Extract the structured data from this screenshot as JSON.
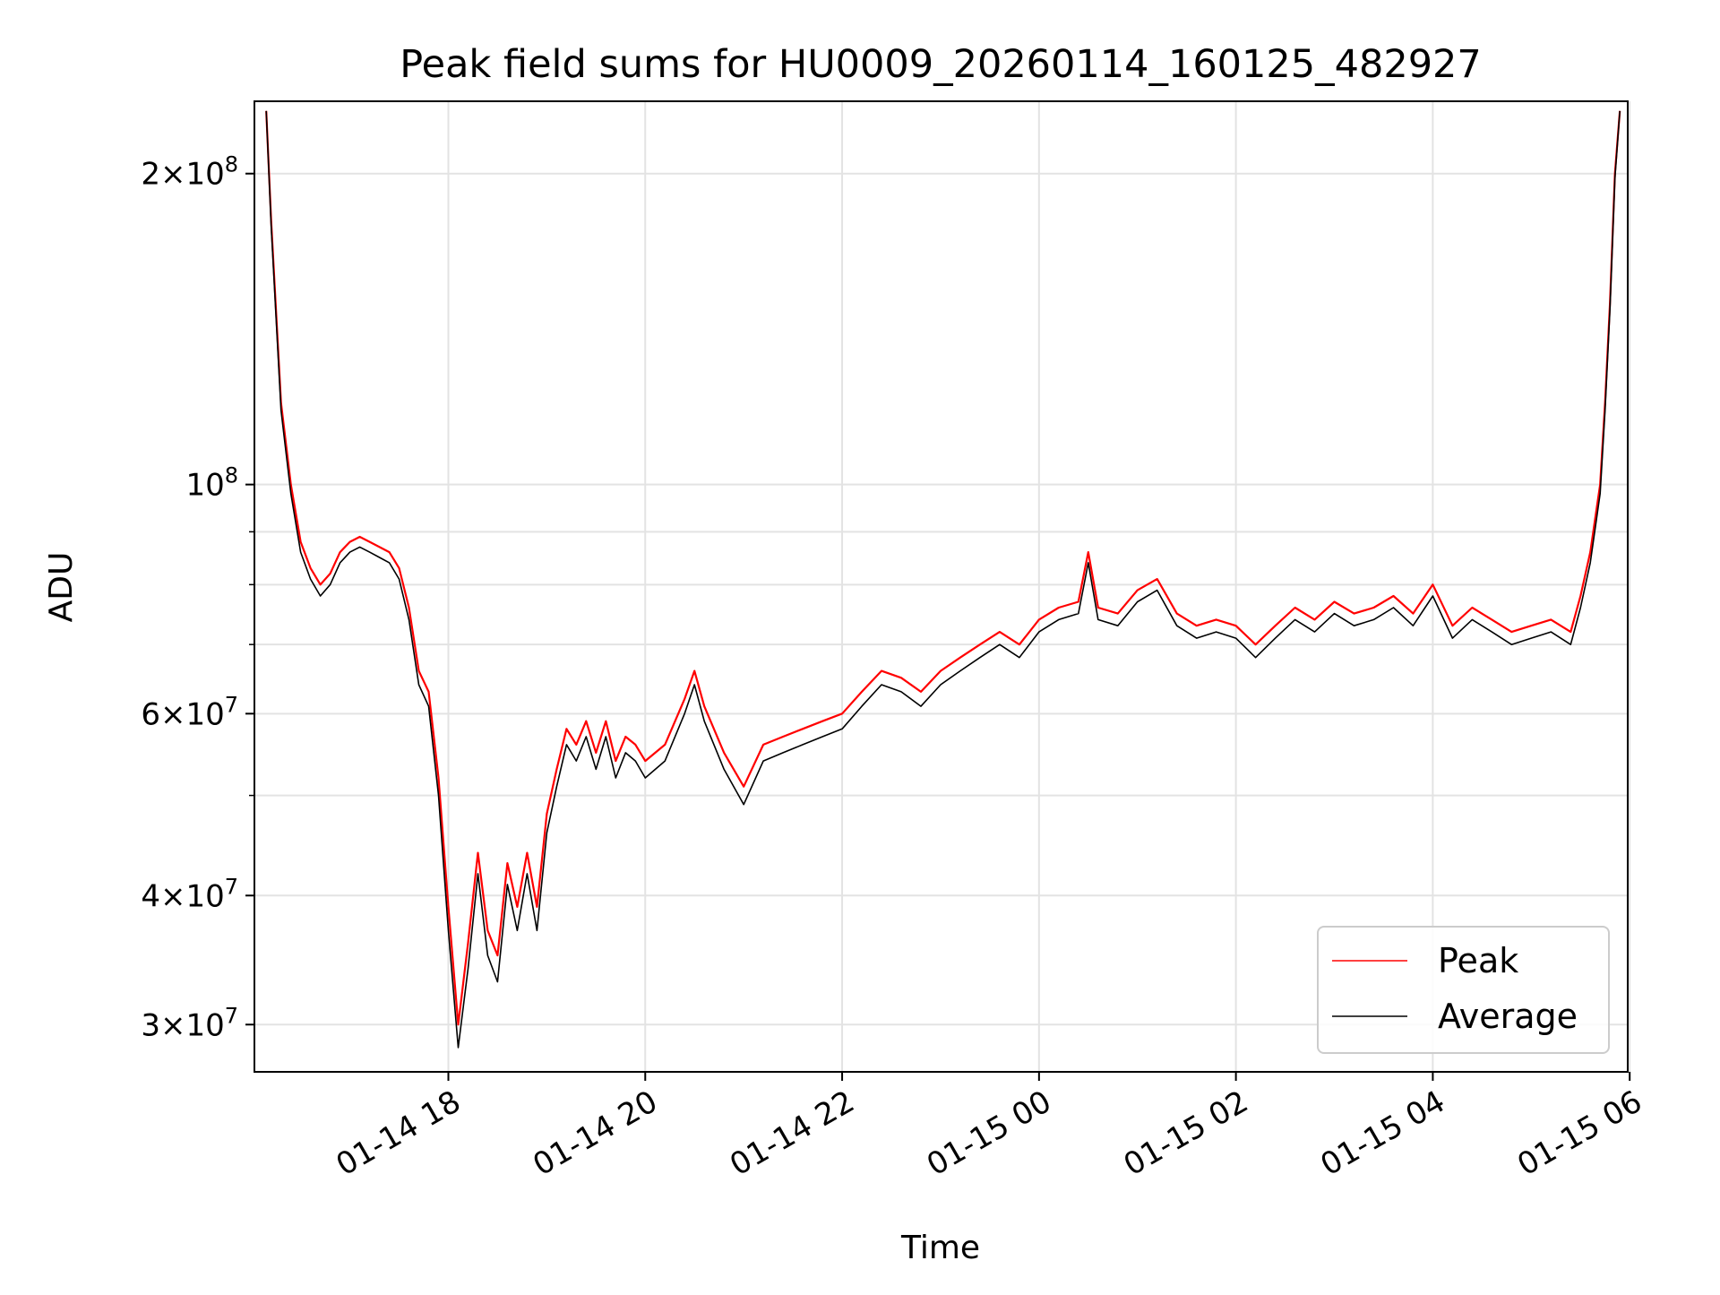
{
  "chart_data": {
    "type": "line",
    "title": "Peak field sums for HU0009_20260114_160125_482927",
    "xlabel": "Time",
    "ylabel": "ADU",
    "yscale": "log",
    "grid": true,
    "legend_position": "bottom-right",
    "x_unit": "hours since 01-14 00:00",
    "xlim": [
      16.03,
      29.98
    ],
    "ylim": [
      27000000.0,
      235000000.0
    ],
    "x_ticks": [
      {
        "value": 18,
        "label": "01-14 18"
      },
      {
        "value": 20,
        "label": "01-14 20"
      },
      {
        "value": 22,
        "label": "01-14 22"
      },
      {
        "value": 24,
        "label": "01-15 00"
      },
      {
        "value": 26,
        "label": "01-15 02"
      },
      {
        "value": 28,
        "label": "01-15 04"
      },
      {
        "value": 30,
        "label": "01-15 06"
      }
    ],
    "y_major_ticks": [
      {
        "value": 30000000,
        "mantissa": "3",
        "exponent": "7"
      },
      {
        "value": 40000000,
        "mantissa": "4",
        "exponent": "7"
      },
      {
        "value": 60000000,
        "mantissa": "6",
        "exponent": "7"
      },
      {
        "value": 100000000,
        "mantissa": "",
        "exponent": "8"
      },
      {
        "value": 200000000,
        "mantissa": "2",
        "exponent": "8"
      }
    ],
    "y_minor_ticks": [
      50000000,
      70000000,
      80000000,
      90000000
    ],
    "series": [
      {
        "name": "Peak",
        "color": "#ff0000",
        "x": [
          16.15,
          16.2,
          16.3,
          16.4,
          16.5,
          16.6,
          16.7,
          16.8,
          16.9,
          17.0,
          17.1,
          17.2,
          17.3,
          17.4,
          17.5,
          17.6,
          17.7,
          17.8,
          17.9,
          18.0,
          18.1,
          18.2,
          18.3,
          18.4,
          18.5,
          18.6,
          18.7,
          18.8,
          18.9,
          19.0,
          19.1,
          19.2,
          19.3,
          19.4,
          19.5,
          19.6,
          19.7,
          19.8,
          19.9,
          20.0,
          20.2,
          20.4,
          20.5,
          20.6,
          20.8,
          21.0,
          21.2,
          21.4,
          21.6,
          21.8,
          22.0,
          22.2,
          22.4,
          22.6,
          22.8,
          23.0,
          23.2,
          23.4,
          23.6,
          23.8,
          24.0,
          24.2,
          24.4,
          24.5,
          24.6,
          24.8,
          25.0,
          25.2,
          25.4,
          25.6,
          25.8,
          26.0,
          26.2,
          26.4,
          26.6,
          26.8,
          27.0,
          27.2,
          27.4,
          27.6,
          27.8,
          28.0,
          28.2,
          28.4,
          28.6,
          28.8,
          29.0,
          29.2,
          29.4,
          29.5,
          29.6,
          29.7,
          29.75,
          29.8,
          29.85,
          29.9
        ],
        "values": [
          230000000.0,
          180000000.0,
          120000000.0,
          100000000.0,
          88000000.0,
          83000000.0,
          80000000.0,
          82000000.0,
          86000000.0,
          88000000.0,
          89000000.0,
          88000000.0,
          87000000.0,
          86000000.0,
          83000000.0,
          76000000.0,
          66000000.0,
          63000000.0,
          52000000.0,
          39000000.0,
          30000000.0,
          36000000.0,
          44000000.0,
          37000000.0,
          35000000.0,
          43000000.0,
          39000000.0,
          44000000.0,
          39000000.0,
          48000000.0,
          53000000.0,
          58000000.0,
          56000000.0,
          59000000.0,
          55000000.0,
          59000000.0,
          54000000.0,
          57000000.0,
          56000000.0,
          54000000.0,
          56000000.0,
          62000000.0,
          66000000.0,
          61000000.0,
          55000000.0,
          51000000.0,
          56000000.0,
          57000000.0,
          58000000.0,
          59000000.0,
          60000000.0,
          63000000.0,
          66000000.0,
          65000000.0,
          63000000.0,
          66000000.0,
          68000000.0,
          70000000.0,
          72000000.0,
          70000000.0,
          74000000.0,
          76000000.0,
          77000000.0,
          86000000.0,
          76000000.0,
          75000000.0,
          79000000.0,
          81000000.0,
          75000000.0,
          73000000.0,
          74000000.0,
          73000000.0,
          70000000.0,
          73000000.0,
          76000000.0,
          74000000.0,
          77000000.0,
          75000000.0,
          76000000.0,
          78000000.0,
          75000000.0,
          80000000.0,
          73000000.0,
          76000000.0,
          74000000.0,
          72000000.0,
          73000000.0,
          74000000.0,
          72000000.0,
          78000000.0,
          86000000.0,
          100000000.0,
          120000000.0,
          150000000.0,
          200000000.0,
          230000000.0
        ]
      },
      {
        "name": "Average",
        "color": "#000000",
        "x": [
          16.15,
          16.2,
          16.3,
          16.4,
          16.5,
          16.6,
          16.7,
          16.8,
          16.9,
          17.0,
          17.1,
          17.2,
          17.3,
          17.4,
          17.5,
          17.6,
          17.7,
          17.8,
          17.9,
          18.0,
          18.1,
          18.2,
          18.3,
          18.4,
          18.5,
          18.6,
          18.7,
          18.8,
          18.9,
          19.0,
          19.1,
          19.2,
          19.3,
          19.4,
          19.5,
          19.6,
          19.7,
          19.8,
          19.9,
          20.0,
          20.2,
          20.4,
          20.5,
          20.6,
          20.8,
          21.0,
          21.2,
          21.4,
          21.6,
          21.8,
          22.0,
          22.2,
          22.4,
          22.6,
          22.8,
          23.0,
          23.2,
          23.4,
          23.6,
          23.8,
          24.0,
          24.2,
          24.4,
          24.5,
          24.6,
          24.8,
          25.0,
          25.2,
          25.4,
          25.6,
          25.8,
          26.0,
          26.2,
          26.4,
          26.6,
          26.8,
          27.0,
          27.2,
          27.4,
          27.6,
          27.8,
          28.0,
          28.2,
          28.4,
          28.6,
          28.8,
          29.0,
          29.2,
          29.4,
          29.5,
          29.6,
          29.7,
          29.75,
          29.8,
          29.85,
          29.9
        ],
        "values": [
          230000000.0,
          178000000.0,
          118000000.0,
          98000000.0,
          86000000.0,
          81000000.0,
          78000000.0,
          80000000.0,
          84000000.0,
          86000000.0,
          87000000.0,
          86000000.0,
          85000000.0,
          84000000.0,
          81000000.0,
          74000000.0,
          64000000.0,
          61000000.0,
          50000000.0,
          37000000.0,
          28500000.0,
          34000000.0,
          42000000.0,
          35000000.0,
          33000000.0,
          41000000.0,
          37000000.0,
          42000000.0,
          37000000.0,
          46000000.0,
          51000000.0,
          56000000.0,
          54000000.0,
          57000000.0,
          53000000.0,
          57000000.0,
          52000000.0,
          55000000.0,
          54000000.0,
          52000000.0,
          54000000.0,
          60000000.0,
          64000000.0,
          59000000.0,
          53000000.0,
          49000000.0,
          54000000.0,
          55000000.0,
          56000000.0,
          57000000.0,
          58000000.0,
          61000000.0,
          64000000.0,
          63000000.0,
          61000000.0,
          64000000.0,
          66000000.0,
          68000000.0,
          70000000.0,
          68000000.0,
          72000000.0,
          74000000.0,
          75000000.0,
          84000000.0,
          74000000.0,
          73000000.0,
          77000000.0,
          79000000.0,
          73000000.0,
          71000000.0,
          72000000.0,
          71000000.0,
          68000000.0,
          71000000.0,
          74000000.0,
          72000000.0,
          75000000.0,
          73000000.0,
          74000000.0,
          76000000.0,
          73000000.0,
          78000000.0,
          71000000.0,
          74000000.0,
          72000000.0,
          70000000.0,
          71000000.0,
          72000000.0,
          70000000.0,
          76000000.0,
          84000000.0,
          98000000.0,
          118000000.0,
          148000000.0,
          198000000.0,
          230000000.0
        ]
      }
    ]
  }
}
